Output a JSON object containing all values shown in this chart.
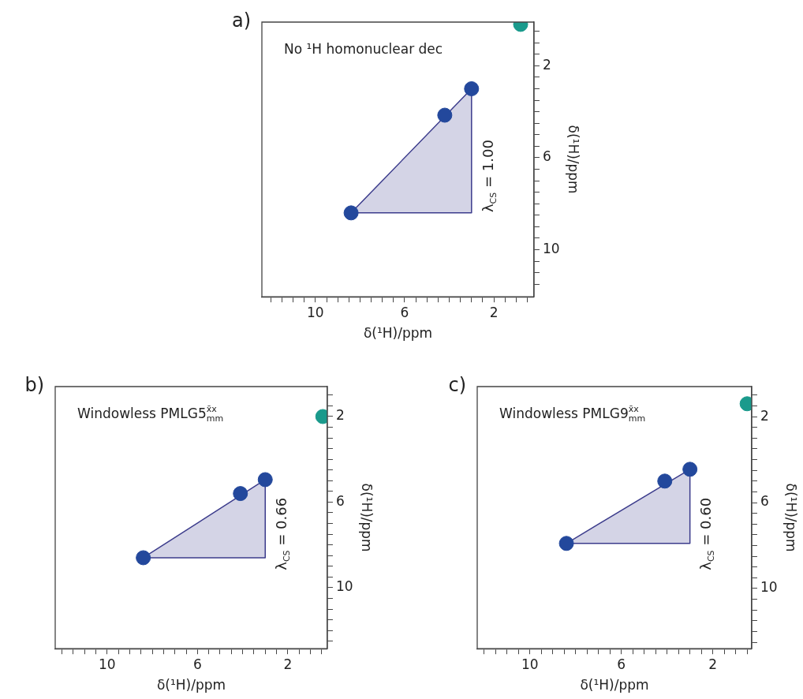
{
  "chart_data": [
    {
      "type": "scatter",
      "title": "a)",
      "xlabel": "δ(¹H)/ppm",
      "ylabel": "δ(¹H)/ppm",
      "grid": false,
      "legend": false,
      "annotations": [
        "No ¹H homonuclear dec",
        "λ$_{CS}$ = 1.00"
      ],
      "xlim": [
        12.4,
        0.2
      ],
      "ylim": [
        12.05,
        0.1
      ],
      "xticks": [
        {
          "value": 12,
          "label": null
        },
        {
          "value": 11.5,
          "label": null
        },
        {
          "value": 11,
          "label": null
        },
        {
          "value": 10.5,
          "label": null
        },
        10,
        {
          "value": 9.5,
          "label": null
        },
        {
          "value": 9,
          "label": null
        },
        {
          "value": 8.5,
          "label": null
        },
        {
          "value": 8,
          "label": null
        },
        {
          "value": 7.5,
          "label": null
        },
        {
          "value": 7,
          "label": null
        },
        {
          "value": 6.5,
          "label": null
        },
        6,
        {
          "value": 5.5,
          "label": null
        },
        {
          "value": 5,
          "label": null
        },
        {
          "value": 4.5,
          "label": null
        },
        {
          "value": 4,
          "label": null
        },
        {
          "value": 3.5,
          "label": null
        },
        {
          "value": 3,
          "label": null
        },
        {
          "value": 2.5,
          "label": null
        },
        2,
        {
          "value": 1.5,
          "label": null
        },
        {
          "value": 1,
          "label": null
        },
        {
          "value": 0.5,
          "label": null
        }
      ],
      "yticks": [
        {
          "value": 0.5,
          "label": null
        },
        {
          "value": 1,
          "label": null
        },
        {
          "value": 1.5,
          "label": null
        },
        2,
        {
          "value": 2.5,
          "label": null
        },
        {
          "value": 3,
          "label": null
        },
        {
          "value": 3.5,
          "label": null
        },
        {
          "value": 4,
          "label": null
        },
        {
          "value": 4.5,
          "label": null
        },
        {
          "value": 5,
          "label": null
        },
        {
          "value": 5.5,
          "label": null
        },
        6,
        {
          "value": 6.5,
          "label": null
        },
        {
          "value": 7,
          "label": null
        },
        {
          "value": 7.5,
          "label": null
        },
        {
          "value": 8,
          "label": null
        },
        {
          "value": 8.5,
          "label": null
        },
        {
          "value": 9,
          "label": null
        },
        {
          "value": 9.5,
          "label": null
        },
        10,
        {
          "value": 10.5,
          "label": null
        },
        {
          "value": 11,
          "label": null
        },
        {
          "value": 11.5,
          "label": null
        }
      ],
      "series": [
        {
          "type": "area",
          "color": "#3c3c8c",
          "x": [
            8.4,
            3.0,
            3.0,
            8.4
          ],
          "values": [
            8.4,
            3.0,
            8.4,
            8.4
          ]
        },
        {
          "type": "scatter",
          "marker": "circle",
          "color": "#23489c",
          "x": [
            8.4,
            4.2,
            3.0
          ],
          "values": [
            8.4,
            4.15,
            3.0
          ]
        },
        {
          "type": "scatter",
          "marker": "circle",
          "color": "#1a9a8c",
          "x": [
            0.8
          ],
          "values": [
            0.2
          ]
        }
      ]
    },
    {
      "type": "scatter",
      "title": "b)",
      "xlabel": "δ(¹H)/ppm",
      "ylabel": "δ(¹H)/ppm",
      "grid": false,
      "legend": false,
      "annotations": [
        "Windowless PMLG5$^{x̄x}$$_{mm}$",
        "λ$_{CS}$ = 0.66"
      ],
      "xlim": [
        12.3,
        0.25
      ],
      "ylim": [
        12.85,
        0.6
      ],
      "xticks": [
        {
          "value": 12,
          "label": null
        },
        {
          "value": 11.5,
          "label": null
        },
        {
          "value": 11,
          "label": null
        },
        {
          "value": 10.5,
          "label": null
        },
        10,
        {
          "value": 9.5,
          "label": null
        },
        {
          "value": 9,
          "label": null
        },
        {
          "value": 8.5,
          "label": null
        },
        {
          "value": 8,
          "label": null
        },
        {
          "value": 7.5,
          "label": null
        },
        {
          "value": 7,
          "label": null
        },
        {
          "value": 6.5,
          "label": null
        },
        6,
        {
          "value": 5.5,
          "label": null
        },
        {
          "value": 5,
          "label": null
        },
        {
          "value": 4.5,
          "label": null
        },
        {
          "value": 4,
          "label": null
        },
        {
          "value": 3.5,
          "label": null
        },
        {
          "value": 3,
          "label": null
        },
        {
          "value": 2.5,
          "label": null
        },
        2,
        {
          "value": 1.5,
          "label": null
        },
        {
          "value": 1,
          "label": null
        },
        {
          "value": 0.5,
          "label": null
        }
      ],
      "yticks": [
        {
          "value": 1,
          "label": null
        },
        {
          "value": 1.5,
          "label": null
        },
        2,
        {
          "value": 2.5,
          "label": null
        },
        {
          "value": 3,
          "label": null
        },
        {
          "value": 3.5,
          "label": null
        },
        {
          "value": 4,
          "label": null
        },
        {
          "value": 4.5,
          "label": null
        },
        {
          "value": 5,
          "label": null
        },
        {
          "value": 5.5,
          "label": null
        },
        6,
        {
          "value": 6.5,
          "label": null
        },
        {
          "value": 7,
          "label": null
        },
        {
          "value": 7.5,
          "label": null
        },
        {
          "value": 8,
          "label": null
        },
        {
          "value": 8.5,
          "label": null
        },
        {
          "value": 9,
          "label": null
        },
        {
          "value": 9.5,
          "label": null
        },
        10,
        {
          "value": 10.5,
          "label": null
        },
        {
          "value": 11,
          "label": null
        },
        {
          "value": 11.5,
          "label": null
        },
        {
          "value": 12,
          "label": null
        },
        {
          "value": 12.5,
          "label": null
        }
      ],
      "series": [
        {
          "type": "area",
          "color": "#3c3c8c",
          "x": [
            8.4,
            3.0,
            3.0,
            8.4
          ],
          "values": [
            8.6,
            4.95,
            8.6,
            8.6
          ]
        },
        {
          "type": "scatter",
          "marker": "circle",
          "color": "#23489c",
          "x": [
            8.4,
            4.1,
            3.0
          ],
          "values": [
            8.6,
            5.6,
            4.95
          ]
        },
        {
          "type": "scatter",
          "marker": "circle",
          "color": "#1a9a8c",
          "x": [
            0.45
          ],
          "values": [
            2.0
          ]
        }
      ]
    },
    {
      "type": "scatter",
      "title": "c)",
      "xlabel": "δ(¹H)/ppm",
      "ylabel": "δ(¹H)/ppm",
      "grid": false,
      "legend": false,
      "annotations": [
        "Windowless PMLG9$^{x̄x}$$_{mm}$",
        "λ$_{CS}$ = 0.60"
      ],
      "xlim": [
        12.3,
        0.3
      ],
      "ylim": [
        12.8,
        0.6
      ],
      "xticks": [
        {
          "value": 12,
          "label": null
        },
        {
          "value": 11.5,
          "label": null
        },
        {
          "value": 11,
          "label": null
        },
        {
          "value": 10.5,
          "label": null
        },
        10,
        {
          "value": 9.5,
          "label": null
        },
        {
          "value": 9,
          "label": null
        },
        {
          "value": 8.5,
          "label": null
        },
        {
          "value": 8,
          "label": null
        },
        {
          "value": 7.5,
          "label": null
        },
        {
          "value": 7,
          "label": null
        },
        {
          "value": 6.5,
          "label": null
        },
        6,
        {
          "value": 5.5,
          "label": null
        },
        {
          "value": 5,
          "label": null
        },
        {
          "value": 4.5,
          "label": null
        },
        {
          "value": 4,
          "label": null
        },
        {
          "value": 3.5,
          "label": null
        },
        {
          "value": 3,
          "label": null
        },
        {
          "value": 2.5,
          "label": null
        },
        2,
        {
          "value": 1.5,
          "label": null
        },
        {
          "value": 1,
          "label": null
        },
        {
          "value": 0.5,
          "label": null
        }
      ],
      "yticks": [
        {
          "value": 1,
          "label": null
        },
        {
          "value": 1.5,
          "label": null
        },
        2,
        {
          "value": 2.5,
          "label": null
        },
        {
          "value": 3,
          "label": null
        },
        {
          "value": 3.5,
          "label": null
        },
        {
          "value": 4,
          "label": null
        },
        {
          "value": 4.5,
          "label": null
        },
        {
          "value": 5,
          "label": null
        },
        {
          "value": 5.5,
          "label": null
        },
        6,
        {
          "value": 6.5,
          "label": null
        },
        {
          "value": 7,
          "label": null
        },
        {
          "value": 7.5,
          "label": null
        },
        {
          "value": 8,
          "label": null
        },
        {
          "value": 8.5,
          "label": null
        },
        {
          "value": 9,
          "label": null
        },
        {
          "value": 9.5,
          "label": null
        },
        10,
        {
          "value": 10.5,
          "label": null
        },
        {
          "value": 11,
          "label": null
        },
        {
          "value": 11.5,
          "label": null
        },
        {
          "value": 12,
          "label": null
        },
        {
          "value": 12.5,
          "label": null
        }
      ],
      "series": [
        {
          "type": "area",
          "color": "#3c3c8c",
          "x": [
            8.4,
            3.0,
            3.0,
            8.4
          ],
          "values": [
            7.9,
            4.45,
            7.9,
            7.9
          ]
        },
        {
          "type": "scatter",
          "marker": "circle",
          "color": "#23489c",
          "x": [
            8.4,
            4.1,
            3.0
          ],
          "values": [
            7.9,
            5.0,
            4.45
          ]
        },
        {
          "type": "scatter",
          "marker": "circle",
          "color": "#1a9a8c",
          "x": [
            0.5
          ],
          "values": [
            1.4
          ]
        }
      ]
    }
  ]
}
